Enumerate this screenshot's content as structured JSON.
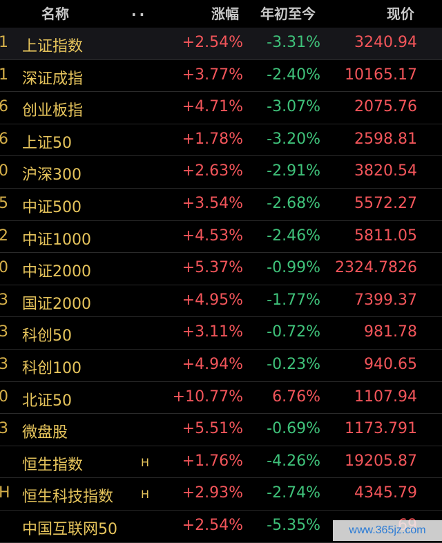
{
  "header": {
    "name": "名称",
    "dots": "..",
    "change": "涨幅",
    "ytd": "年初至今",
    "price": "现价"
  },
  "rows": [
    {
      "code": "1",
      "name": "上证指数",
      "mark": "",
      "change": "+2.54%",
      "ytd": "-3.31%",
      "price": "3240.94"
    },
    {
      "code": "1",
      "name": "深证成指",
      "mark": "",
      "change": "+3.77%",
      "ytd": "-2.40%",
      "price": "10165.17"
    },
    {
      "code": "6",
      "name": "创业板指",
      "mark": "",
      "change": "+4.71%",
      "ytd": "-3.07%",
      "price": "2075.76"
    },
    {
      "code": "6",
      "name": "上证50",
      "mark": "",
      "change": "+1.78%",
      "ytd": "-3.20%",
      "price": "2598.81"
    },
    {
      "code": "0",
      "name": "沪深300",
      "mark": "",
      "change": "+2.63%",
      "ytd": "-2.91%",
      "price": "3820.54"
    },
    {
      "code": "5",
      "name": "中证500",
      "mark": "",
      "change": "+3.54%",
      "ytd": "-2.68%",
      "price": "5572.27"
    },
    {
      "code": "2",
      "name": "中证1000",
      "mark": "",
      "change": "+4.53%",
      "ytd": "-2.46%",
      "price": "5811.05"
    },
    {
      "code": "0",
      "name": "中证2000",
      "mark": "",
      "change": "+5.37%",
      "ytd": "-0.99%",
      "price": "2324.7826"
    },
    {
      "code": "3",
      "name": "国证2000",
      "mark": "",
      "change": "+4.95%",
      "ytd": "-1.77%",
      "price": "7399.37"
    },
    {
      "code": "3",
      "name": "科创50",
      "mark": "",
      "change": "+3.11%",
      "ytd": "-0.72%",
      "price": "981.78"
    },
    {
      "code": "3",
      "name": "科创100",
      "mark": "",
      "change": "+4.94%",
      "ytd": "-0.23%",
      "price": "940.65"
    },
    {
      "code": "0",
      "name": "北证50",
      "mark": "",
      "change": "+10.77%",
      "ytd": "6.76%",
      "price": "1107.94"
    },
    {
      "code": "3",
      "name": "微盘股",
      "mark": "",
      "change": "+5.51%",
      "ytd": "-0.69%",
      "price": "1173.791"
    },
    {
      "code": "",
      "name": "恒生指数",
      "mark": "H",
      "change": "+1.76%",
      "ytd": "-4.26%",
      "price": "19205.87"
    },
    {
      "code": "H",
      "name": "恒生科技指数",
      "mark": "H",
      "change": "+2.93%",
      "ytd": "-2.74%",
      "price": "4345.79"
    },
    {
      "code": "",
      "name": "中国互联网50",
      "mark": "",
      "change": "+2.54%",
      "ytd": "-5.35%",
      "price": "69"
    }
  ],
  "watermark": "www.365jz.com",
  "colors": {
    "up": "#f2555a",
    "down": "#3fc27a",
    "name": "#e6c45c",
    "background": "#000000"
  }
}
